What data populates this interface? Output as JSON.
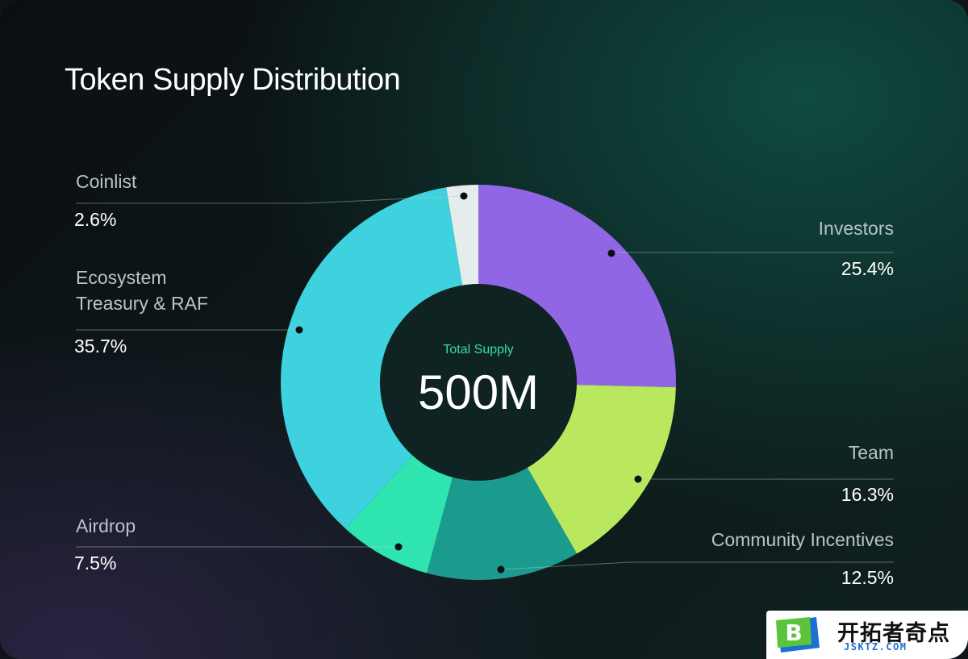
{
  "title": "Token Supply Distribution",
  "center": {
    "label": "Total Supply",
    "value": "500M"
  },
  "colors": {
    "investors": "#9066e4",
    "team": "#b9e85f",
    "community": "#1b9a8e",
    "airdrop": "#2ee5b0",
    "ecosystem": "#3dd2de",
    "coinlist": "#e4ecec",
    "hole": "#0f2422"
  },
  "chart_data": {
    "type": "pie",
    "title": "Token Supply Distribution",
    "center_text": "500M",
    "slices": [
      {
        "name": "Investors",
        "value": 25.4,
        "label": "25.4%",
        "color": "#9066e4"
      },
      {
        "name": "Team",
        "value": 16.3,
        "label": "16.3%",
        "color": "#b9e85f"
      },
      {
        "name": "Community Incentives",
        "value": 12.5,
        "label": "12.5%",
        "color": "#1b9a8e"
      },
      {
        "name": "Airdrop",
        "value": 7.5,
        "label": "7.5%",
        "color": "#2ee5b0"
      },
      {
        "name": "Ecosystem Treasury & RAF",
        "value": 35.7,
        "label": "35.7%",
        "color": "#3dd2de"
      },
      {
        "name": "Coinlist",
        "value": 2.6,
        "label": "2.6%",
        "color": "#e4ecec"
      }
    ]
  },
  "labels": {
    "coinlist": {
      "name": "Coinlist",
      "pct": "2.6%"
    },
    "ecosystem": {
      "name_line1": "Ecosystem",
      "name_line2": "Treasury & RAF",
      "pct": "35.7%"
    },
    "airdrop": {
      "name": "Airdrop",
      "pct": "7.5%"
    },
    "investors": {
      "name": "Investors",
      "pct": "25.4%"
    },
    "team": {
      "name": "Team",
      "pct": "16.3%"
    },
    "community": {
      "name": "Community Incentives",
      "pct": "12.5%"
    }
  },
  "logo": {
    "text": "开拓者奇点",
    "sub": "JSKTZ.COM",
    "mark": "B"
  }
}
